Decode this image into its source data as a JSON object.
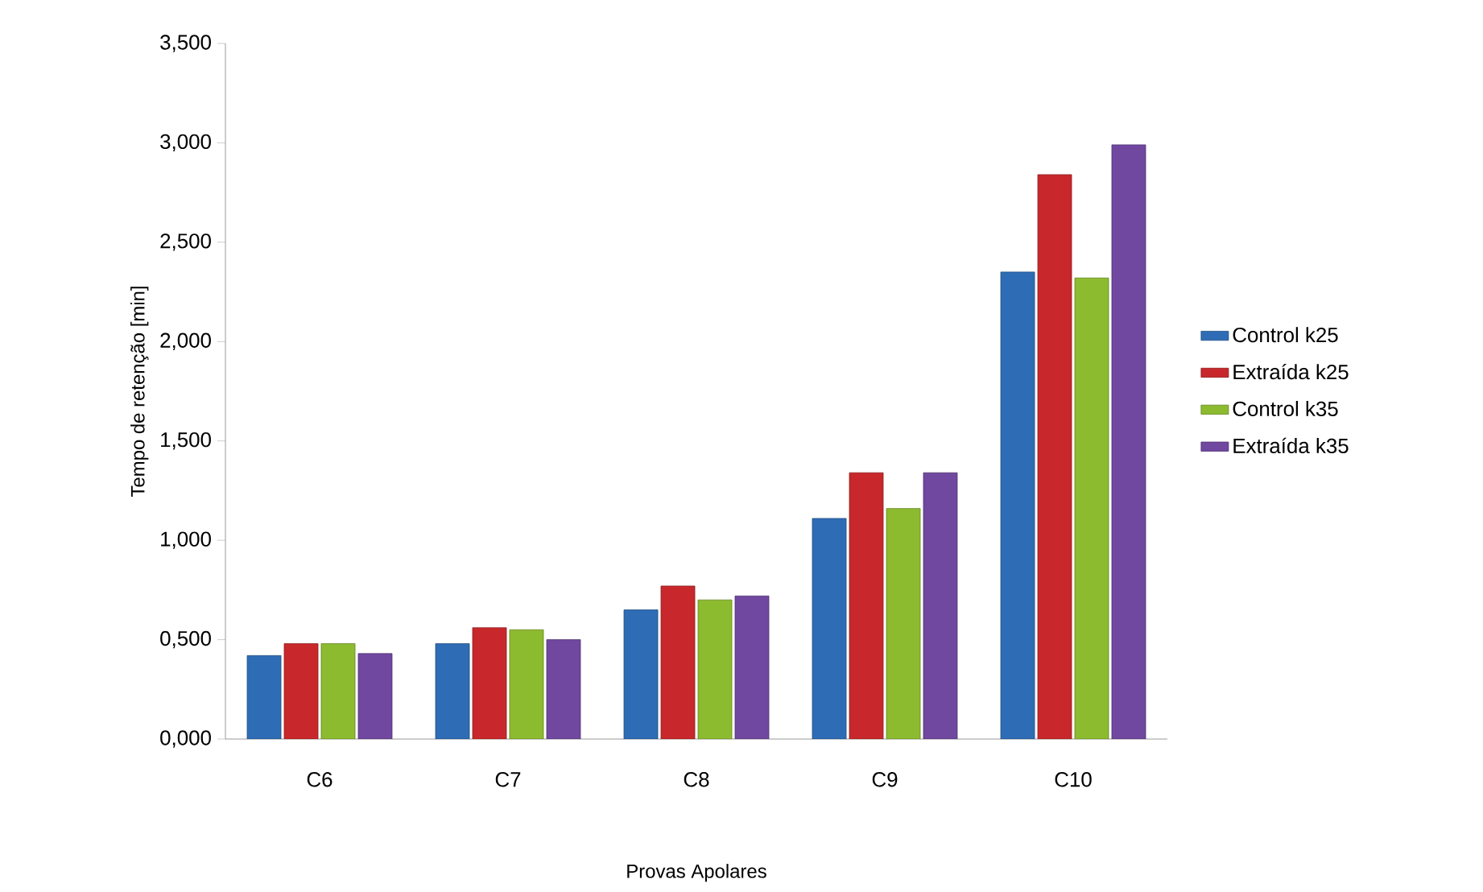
{
  "chart_data": {
    "type": "bar",
    "xlabel": "Provas Apolares",
    "ylabel": "Tempo de retenção [min]",
    "categories": [
      "C6",
      "C7",
      "C8",
      "C9",
      "C10"
    ],
    "series": [
      {
        "name": "Control k25",
        "color": "#2e6db5",
        "values": [
          0.42,
          0.48,
          0.65,
          1.11,
          2.35
        ]
      },
      {
        "name": "Extraída k25",
        "color": "#c8282b",
        "values": [
          0.48,
          0.56,
          0.77,
          1.34,
          2.84
        ]
      },
      {
        "name": "Control k35",
        "color": "#8dbb2f",
        "values": [
          0.48,
          0.55,
          0.7,
          1.16,
          2.32
        ]
      },
      {
        "name": "Extraída k35",
        "color": "#7048a0",
        "values": [
          0.43,
          0.5,
          0.72,
          1.34,
          2.99
        ]
      }
    ],
    "ylim": [
      0,
      3.5
    ],
    "yticks": [
      {
        "value": 0,
        "label": "0,000"
      },
      {
        "value": 0.5,
        "label": "0,500"
      },
      {
        "value": 1,
        "label": "1,000"
      },
      {
        "value": 1.5,
        "label": "1,500"
      },
      {
        "value": 2,
        "label": "2,000"
      },
      {
        "value": 2.5,
        "label": "2,500"
      },
      {
        "value": 3,
        "label": "3,000"
      },
      {
        "value": 3.5,
        "label": "3,500"
      }
    ],
    "legend": "right"
  }
}
